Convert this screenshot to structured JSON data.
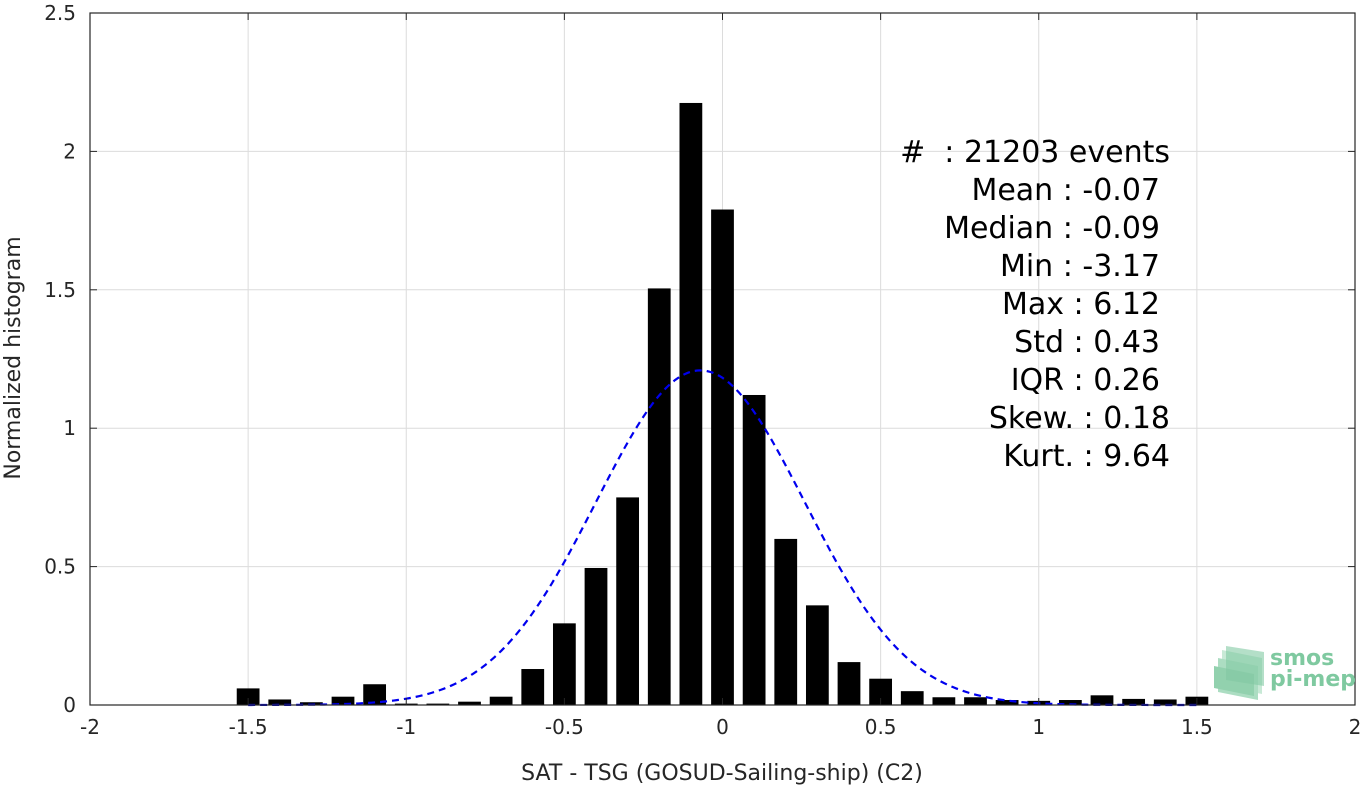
{
  "chart_data": {
    "type": "bar",
    "xlabel": "SAT - TSG (GOSUD-Sailing-ship) (C2)",
    "ylabel": "Normalized histogram",
    "xlim": [
      -2,
      2
    ],
    "ylim": [
      0,
      2.5
    ],
    "xticks": [
      -2,
      -1.5,
      -1,
      -0.5,
      0,
      0.5,
      1,
      1.5,
      2
    ],
    "xtick_labels": [
      "-2",
      "-1.5",
      "-1",
      "-0.5",
      "0",
      "0.5",
      "1",
      "1.5",
      "2"
    ],
    "yticks": [
      0,
      0.5,
      1,
      1.5,
      2,
      2.5
    ],
    "ytick_labels": [
      "0",
      "0.5",
      "1",
      "1.5",
      "2",
      "2.5"
    ],
    "grid": true,
    "bin_width": 0.1,
    "bar_color": "#000000",
    "bins": [
      {
        "x": -1.5,
        "y": 0.06
      },
      {
        "x": -1.4,
        "y": 0.02
      },
      {
        "x": -1.3,
        "y": 0.01
      },
      {
        "x": -1.2,
        "y": 0.03
      },
      {
        "x": -1.1,
        "y": 0.075
      },
      {
        "x": -1.0,
        "y": 0.005
      },
      {
        "x": -0.9,
        "y": 0.005
      },
      {
        "x": -0.8,
        "y": 0.012
      },
      {
        "x": -0.7,
        "y": 0.03
      },
      {
        "x": -0.6,
        "y": 0.13
      },
      {
        "x": -0.5,
        "y": 0.295
      },
      {
        "x": -0.4,
        "y": 0.495
      },
      {
        "x": -0.3,
        "y": 0.75
      },
      {
        "x": -0.2,
        "y": 1.505
      },
      {
        "x": -0.1,
        "y": 2.175
      },
      {
        "x": 0.0,
        "y": 1.79
      },
      {
        "x": 0.1,
        "y": 1.12
      },
      {
        "x": 0.2,
        "y": 0.6
      },
      {
        "x": 0.3,
        "y": 0.36
      },
      {
        "x": 0.4,
        "y": 0.155
      },
      {
        "x": 0.5,
        "y": 0.095
      },
      {
        "x": 0.6,
        "y": 0.05
      },
      {
        "x": 0.7,
        "y": 0.028
      },
      {
        "x": 0.8,
        "y": 0.028
      },
      {
        "x": 0.9,
        "y": 0.018
      },
      {
        "x": 1.0,
        "y": 0.015
      },
      {
        "x": 1.1,
        "y": 0.018
      },
      {
        "x": 1.2,
        "y": 0.035
      },
      {
        "x": 1.3,
        "y": 0.022
      },
      {
        "x": 1.4,
        "y": 0.02
      },
      {
        "x": 1.5,
        "y": 0.03
      }
    ],
    "fit_curve": {
      "type": "gaussian",
      "mean": -0.07,
      "std": 0.33,
      "color": "#0000ee",
      "style": "dashed",
      "x_range": [
        -1.5,
        1.5
      ]
    },
    "annotation_lines": [
      "#  : 21203 events",
      "Mean : -0.07",
      "Median : -0.09",
      "Min : -3.17",
      "Max : 6.12",
      "Std : 0.43",
      "IQR : 0.26",
      "Skew. : 0.18",
      "Kurt. : 9.64"
    ],
    "annotation_placement": "top-right"
  },
  "logo": {
    "line1": "smos",
    "line2": "pi-mep",
    "color": "#7fc9a0"
  }
}
